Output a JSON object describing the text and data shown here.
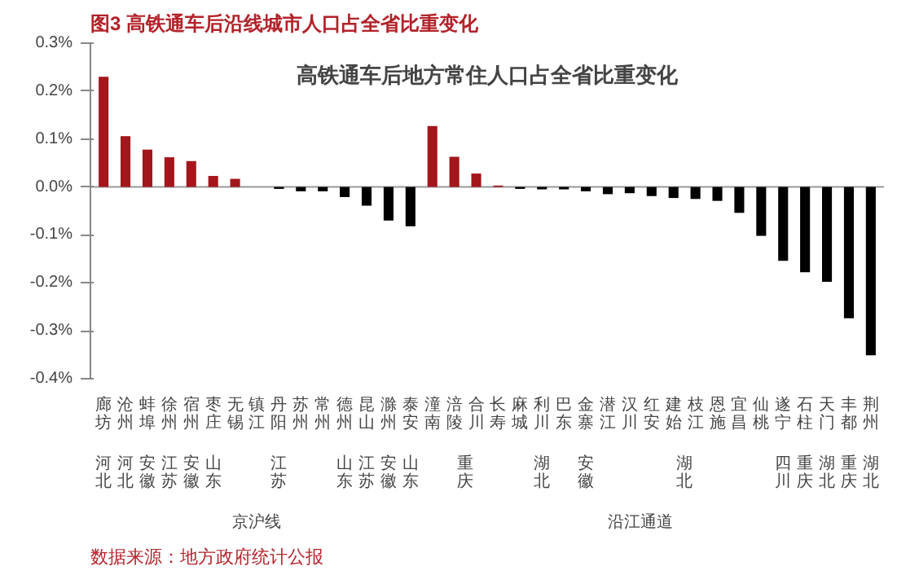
{
  "chart_data": {
    "type": "bar",
    "title": "图3 高铁通车后沿线城市人口占全省比重变化",
    "subtitle": "高铁通车后地方常住人口占全省比重变化",
    "categories": [
      "廊坊",
      "沧州",
      "蚌埠",
      "徐州",
      "宿州",
      "枣庄",
      "无锡",
      "镇江",
      "丹阳",
      "苏州",
      "常州",
      "德州",
      "昆山",
      "滁州",
      "泰安",
      "潼南",
      "涪陵",
      "合川",
      "长寿",
      "麻城",
      "利川",
      "巴东",
      "金寨",
      "潜江",
      "汉川",
      "红安",
      "建始",
      "枝江",
      "恩施",
      "宜昌",
      "仙桃",
      "遂宁",
      "石柱",
      "天门",
      "丰都",
      "荆州"
    ],
    "values": [
      0.23,
      0.106,
      0.078,
      0.062,
      0.054,
      0.023,
      0.017,
      0.0,
      -0.004,
      -0.009,
      -0.009,
      -0.021,
      -0.039,
      -0.07,
      -0.082,
      0.127,
      0.063,
      0.028,
      0.003,
      -0.004,
      -0.005,
      -0.005,
      -0.009,
      -0.015,
      -0.013,
      -0.019,
      -0.023,
      -0.025,
      -0.029,
      -0.054,
      -0.102,
      -0.154,
      -0.178,
      -0.198,
      -0.274,
      -0.351
    ],
    "colors": [
      "#a3161c",
      "#a3161c",
      "#a3161c",
      "#a3161c",
      "#a3161c",
      "#a3161c",
      "#a3161c",
      "#a3161c",
      "#000000",
      "#000000",
      "#000000",
      "#000000",
      "#000000",
      "#000000",
      "#000000",
      "#a3161c",
      "#a3161c",
      "#a3161c",
      "#a3161c",
      "#000000",
      "#000000",
      "#000000",
      "#000000",
      "#000000",
      "#000000",
      "#000000",
      "#000000",
      "#000000",
      "#000000",
      "#000000",
      "#000000",
      "#000000",
      "#000000",
      "#000000",
      "#000000",
      "#000000"
    ],
    "ylim": [
      -0.4,
      0.3
    ],
    "yticks": [
      {
        "value": -0.4,
        "label": "-0.4%"
      },
      {
        "value": -0.3,
        "label": "-0.3%"
      },
      {
        "value": -0.2,
        "label": "-0.2%"
      },
      {
        "value": -0.1,
        "label": "-0.1%"
      },
      {
        "value": 0.0,
        "label": "0.0%"
      },
      {
        "value": 0.1,
        "label": "0.1%"
      },
      {
        "value": 0.2,
        "label": "0.2%"
      },
      {
        "value": 0.3,
        "label": "0.3%"
      }
    ],
    "ref_lines": [
      {
        "axis": "y",
        "value": 0,
        "color": "#999999"
      }
    ],
    "annotations": [
      "河北",
      "河北",
      "安徽",
      "江苏",
      "安徽",
      "山东",
      "江苏",
      "山东",
      "江苏",
      "安徽",
      "山东",
      "重庆",
      "湖北",
      "安徽",
      "湖北",
      "四川",
      "重庆",
      "湖北",
      "重庆",
      "湖北",
      "京沪线",
      "沿江通道",
      "数据来源：地方政府统计公报"
    ]
  }
}
